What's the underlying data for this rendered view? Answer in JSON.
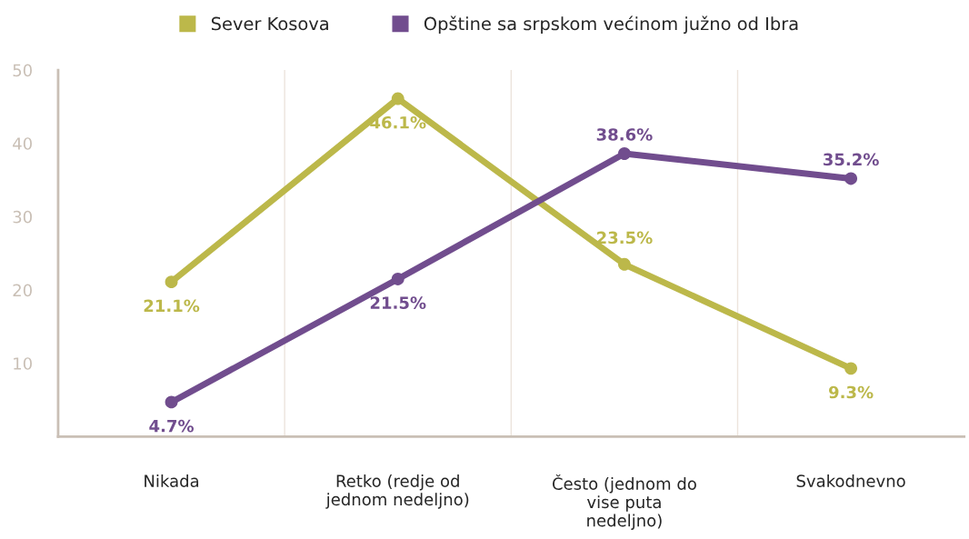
{
  "chart_data": {
    "type": "line",
    "categories": [
      "Nikada",
      "Retko (redje od\njednom nedeljno)",
      "Često (jednom do\nvise puta\nnedeljno)",
      "Svakodnevno"
    ],
    "series": [
      {
        "name": "Sever Kosova",
        "color": "#bcb84a",
        "values": [
          21.1,
          46.1,
          23.5,
          9.3
        ],
        "value_labels": [
          "21.1%",
          "46.1%",
          "23.5%",
          "9.3%"
        ]
      },
      {
        "name": "Opštine sa srpskom većinom južno od Ibra",
        "color": "#714d8e",
        "values": [
          4.7,
          21.5,
          38.6,
          35.2
        ],
        "value_labels": [
          "4.7%",
          "21.5%",
          "38.6%",
          "35.2%"
        ]
      }
    ],
    "ylim": [
      0,
      50
    ],
    "yticks": [
      10,
      20,
      30,
      40,
      50
    ],
    "grid": "x",
    "legend": "top",
    "marker": "circle",
    "line_style": "solid"
  }
}
